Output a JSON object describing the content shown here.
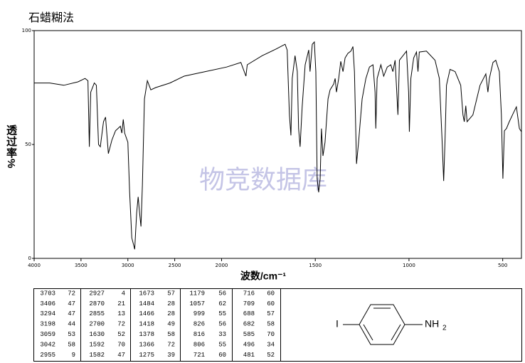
{
  "chart_data": {
    "type": "line",
    "title": "石蜡糊法",
    "xlabel": "波数/cm⁻¹",
    "ylabel": "透过率%",
    "watermark": "物竞数据库",
    "xlim": [
      4000,
      400
    ],
    "xscale": {
      "break": 2000,
      "factor": 2
    },
    "xticks": [
      4000,
      3500,
      3000,
      2500,
      2000,
      1500,
      1000,
      500
    ],
    "ylim": [
      0,
      100
    ],
    "yticks": [
      0,
      50,
      100
    ],
    "x": [
      4000,
      3834,
      3683,
      3532,
      3457,
      3426,
      3411,
      3396,
      3358,
      3336,
      3313,
      3294,
      3260,
      3238,
      3208,
      3170,
      3132,
      3080,
      3064,
      3049,
      3034,
      3000,
      2981,
      2958,
      2936,
      2927,
      2906,
      2890,
      2875,
      2860,
      2845,
      2823,
      2792,
      2755,
      2702,
      2551,
      2400,
      2174,
      1973,
      1897,
      1870,
      1863,
      1783,
      1707,
      1661,
      1650,
      1638,
      1630,
      1623,
      1608,
      1596,
      1589,
      1581,
      1570,
      1554,
      1535,
      1528,
      1516,
      1505,
      1497,
      1490,
      1482,
      1474,
      1467,
      1459,
      1448,
      1432,
      1421,
      1402,
      1394,
      1387,
      1375,
      1364,
      1352,
      1341,
      1326,
      1310,
      1299,
      1291,
      1280,
      1269,
      1250,
      1230,
      1211,
      1192,
      1181,
      1177,
      1170,
      1150,
      1135,
      1116,
      1097,
      1086,
      1074,
      1059,
      1051,
      1032,
      1013,
      1002,
      998,
      990,
      975,
      960,
      952,
      945,
      907,
      861,
      838,
      823,
      815,
      808,
      800,
      781,
      754,
      724,
      712,
      705,
      697,
      690,
      659,
      621,
      590,
      579,
      571,
      552,
      537,
      518,
      507,
      499,
      491,
      480,
      465,
      442,
      427,
      411,
      400
    ],
    "series": [
      {
        "color": "#000000",
        "values": [
          77,
          77,
          76,
          77.5,
          79,
          78,
          49,
          73,
          77,
          76,
          50,
          49,
          60,
          62,
          46,
          52,
          56,
          58,
          55,
          61,
          55,
          51,
          29,
          9,
          5.5,
          4,
          20,
          27,
          20,
          14,
          32,
          70,
          78,
          74,
          75,
          77,
          80,
          82,
          84,
          86,
          80,
          85,
          89,
          92,
          94,
          91.5,
          63,
          54,
          79,
          89,
          82,
          57,
          49,
          66.5,
          85,
          91.5,
          82,
          94,
          95,
          82,
          35,
          29,
          35,
          57,
          45,
          51,
          70,
          74,
          76.5,
          79,
          73,
          79,
          86.5,
          82,
          88,
          90,
          91,
          93,
          82,
          41.5,
          51,
          70,
          79,
          84,
          85,
          73,
          57,
          79,
          85,
          80,
          84,
          85,
          82,
          87,
          63,
          87,
          89,
          91,
          73,
          55.6,
          79,
          88,
          90.6,
          82,
          90.6,
          91,
          87,
          79,
          51,
          34,
          51,
          76,
          83,
          82,
          76,
          63,
          60,
          67,
          60,
          63,
          76,
          81,
          73,
          79,
          86,
          87,
          82,
          63,
          35,
          56,
          57,
          60,
          64,
          66.5,
          57,
          55.6
        ]
      }
    ]
  },
  "peak_table": {
    "columns": [
      [
        [
          3703,
          72
        ],
        [
          3406,
          47
        ],
        [
          3294,
          47
        ],
        [
          3198,
          44
        ],
        [
          3059,
          53
        ],
        [
          3042,
          58
        ],
        [
          2955,
          9
        ]
      ],
      [
        [
          2927,
          4
        ],
        [
          2870,
          21
        ],
        [
          2855,
          13
        ],
        [
          2700,
          72
        ],
        [
          1630,
          52
        ],
        [
          1592,
          70
        ],
        [
          1582,
          47
        ]
      ],
      [
        [
          1673,
          57
        ],
        [
          1484,
          28
        ],
        [
          1466,
          28
        ],
        [
          1418,
          49
        ],
        [
          1378,
          58
        ],
        [
          1366,
          72
        ],
        [
          1275,
          39
        ]
      ],
      [
        [
          1179,
          56
        ],
        [
          1057,
          62
        ],
        [
          999,
          55
        ],
        [
          826,
          56
        ],
        [
          816,
          33
        ],
        [
          806,
          55
        ],
        [
          721,
          60
        ]
      ],
      [
        [
          716,
          60
        ],
        [
          709,
          60
        ],
        [
          688,
          57
        ],
        [
          682,
          58
        ],
        [
          585,
          70
        ],
        [
          496,
          34
        ],
        [
          481,
          52
        ]
      ]
    ]
  },
  "structure": {
    "left_label": "I",
    "right_label": "NH",
    "right_subscript": "2"
  }
}
